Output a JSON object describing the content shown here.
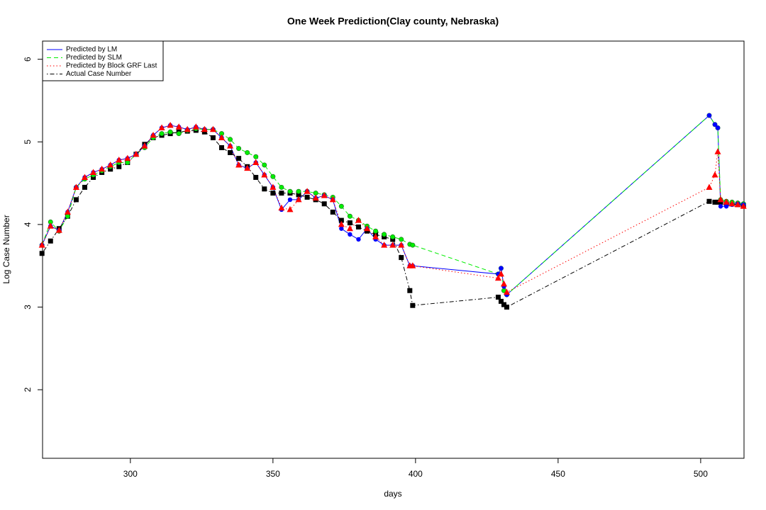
{
  "chart_data": {
    "type": "line",
    "title": "One Week Prediction(Clay county, Nebraska)",
    "x_label": "days",
    "y_label": "Log Case Number",
    "xlim": [
      269.2,
      515.2
    ],
    "ylim": [
      1.17,
      6.22
    ],
    "xticks": [
      300,
      350,
      400,
      450,
      500
    ],
    "yticks": [
      2,
      3,
      4,
      5,
      6
    ],
    "legend_position": "top-left",
    "x": [
      269,
      272,
      275,
      278,
      281,
      284,
      287,
      290,
      293,
      296,
      299,
      302,
      305,
      308,
      311,
      314,
      317,
      320,
      323,
      326,
      329,
      332,
      335,
      338,
      341,
      344,
      347,
      350,
      353,
      356,
      359,
      362,
      365,
      368,
      371,
      374,
      377,
      380,
      383,
      386,
      389,
      392,
      395,
      398,
      399,
      429,
      430,
      431,
      432,
      503,
      505,
      506,
      507,
      509,
      511,
      513,
      515
    ],
    "series": [
      {
        "name": "Predicted by LM",
        "color": "#0000ff",
        "dash": "solid",
        "marker": "circle",
        "values": [
          3.75,
          3.98,
          3.93,
          4.15,
          4.45,
          4.57,
          4.63,
          4.67,
          4.72,
          4.78,
          4.8,
          4.85,
          4.95,
          5.08,
          5.17,
          5.2,
          5.18,
          5.15,
          5.18,
          5.15,
          5.15,
          5.05,
          4.95,
          4.72,
          4.68,
          4.75,
          4.6,
          4.45,
          4.18,
          4.3,
          4.3,
          4.4,
          4.32,
          4.35,
          4.3,
          3.95,
          3.88,
          3.82,
          3.95,
          3.82,
          3.75,
          3.75,
          3.75,
          3.5,
          3.5,
          3.4,
          3.47,
          3.25,
          3.15,
          5.32,
          5.21,
          5.17,
          4.22,
          4.22,
          4.24,
          4.25,
          4.24
        ]
      },
      {
        "name": "Predicted by SLM",
        "color": "#00ee00",
        "dash": "dashed",
        "marker": "circle",
        "values": [
          3.75,
          4.03,
          3.92,
          4.1,
          4.45,
          4.55,
          4.6,
          4.65,
          4.7,
          4.75,
          4.75,
          4.85,
          4.93,
          5.05,
          5.1,
          5.12,
          5.1,
          5.14,
          5.16,
          5.15,
          5.15,
          5.1,
          5.03,
          4.92,
          4.87,
          4.82,
          4.72,
          4.58,
          4.45,
          4.4,
          4.4,
          4.4,
          4.38,
          4.36,
          4.33,
          4.22,
          4.1,
          4.05,
          3.98,
          3.92,
          3.88,
          3.85,
          3.82,
          3.76,
          3.75,
          3.4,
          3.47,
          3.2,
          3.15,
          5.32,
          5.21,
          5.17,
          4.3,
          4.28,
          4.27,
          4.26,
          4.25
        ]
      },
      {
        "name": "Predicted by Block GRF Last",
        "color": "#ff0000",
        "dash": "dotted",
        "marker": "triangle",
        "values": [
          3.75,
          3.98,
          3.93,
          4.15,
          4.45,
          4.57,
          4.63,
          4.67,
          4.72,
          4.78,
          4.8,
          4.85,
          4.95,
          5.08,
          5.17,
          5.2,
          5.18,
          5.15,
          5.18,
          5.15,
          5.15,
          5.05,
          4.95,
          4.72,
          4.68,
          4.75,
          4.6,
          4.45,
          4.2,
          4.18,
          4.3,
          4.4,
          4.32,
          4.35,
          4.3,
          4.0,
          3.95,
          4.05,
          3.95,
          3.85,
          3.75,
          3.75,
          3.75,
          3.5,
          3.5,
          3.35,
          3.4,
          3.28,
          3.18,
          4.45,
          4.6,
          4.88,
          4.3,
          4.27,
          4.25,
          4.24,
          4.22
        ]
      },
      {
        "name": "Actual Case Number",
        "color": "#000000",
        "dash": "dotdash",
        "marker": "square",
        "values": [
          3.65,
          3.8,
          3.95,
          4.1,
          4.3,
          4.45,
          4.57,
          4.63,
          4.67,
          4.7,
          4.75,
          4.85,
          4.97,
          5.05,
          5.08,
          5.1,
          5.12,
          5.13,
          5.14,
          5.12,
          5.05,
          4.93,
          4.87,
          4.8,
          4.7,
          4.57,
          4.43,
          4.38,
          4.38,
          4.38,
          4.36,
          4.33,
          4.3,
          4.25,
          4.15,
          4.05,
          4.02,
          3.97,
          3.92,
          3.88,
          3.85,
          3.82,
          3.6,
          3.2,
          3.02,
          3.12,
          3.07,
          3.03,
          3.0,
          4.28,
          4.27,
          4.27,
          4.27,
          4.26,
          4.25,
          4.24,
          4.23
        ]
      }
    ]
  }
}
